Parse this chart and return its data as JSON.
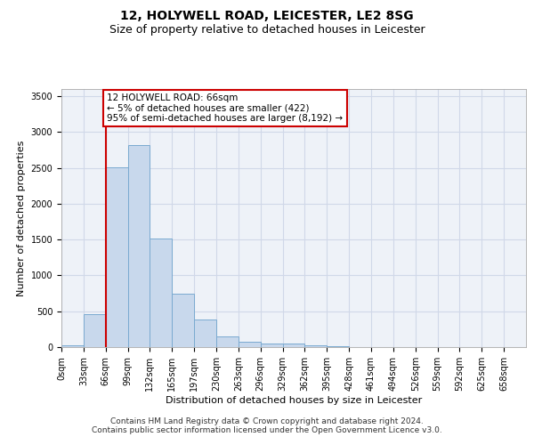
{
  "title_line1": "12, HOLYWELL ROAD, LEICESTER, LE2 8SG",
  "title_line2": "Size of property relative to detached houses in Leicester",
  "xlabel": "Distribution of detached houses by size in Leicester",
  "ylabel": "Number of detached properties",
  "bar_values": [
    20,
    460,
    2510,
    2820,
    1520,
    740,
    390,
    145,
    75,
    55,
    55,
    30,
    10,
    5,
    2,
    1,
    0,
    0,
    0,
    0
  ],
  "bar_labels": [
    "0sqm",
    "33sqm",
    "66sqm",
    "99sqm",
    "132sqm",
    "165sqm",
    "197sqm",
    "230sqm",
    "263sqm",
    "296sqm",
    "329sqm",
    "362sqm",
    "395sqm",
    "428sqm",
    "461sqm",
    "494sqm",
    "526sqm",
    "559sqm",
    "592sqm",
    "625sqm",
    "658sqm"
  ],
  "bar_color": "#c8d8ec",
  "bar_edge_color": "#7aaad0",
  "highlight_bar_index": 2,
  "highlight_color": "#cc0000",
  "ylim": [
    0,
    3600
  ],
  "yticks": [
    0,
    500,
    1000,
    1500,
    2000,
    2500,
    3000,
    3500
  ],
  "annotation_text": "12 HOLYWELL ROAD: 66sqm\n← 5% of detached houses are smaller (422)\n95% of semi-detached houses are larger (8,192) →",
  "annotation_box_color": "#ffffff",
  "annotation_box_edge": "#cc0000",
  "grid_color": "#d0d8e8",
  "bg_color": "#eef2f8",
  "footnote1": "Contains HM Land Registry data © Crown copyright and database right 2024.",
  "footnote2": "Contains public sector information licensed under the Open Government Licence v3.0.",
  "title_fontsize": 10,
  "subtitle_fontsize": 9,
  "axis_label_fontsize": 8,
  "tick_fontsize": 7,
  "annotation_fontsize": 7.5,
  "footnote_fontsize": 6.5
}
